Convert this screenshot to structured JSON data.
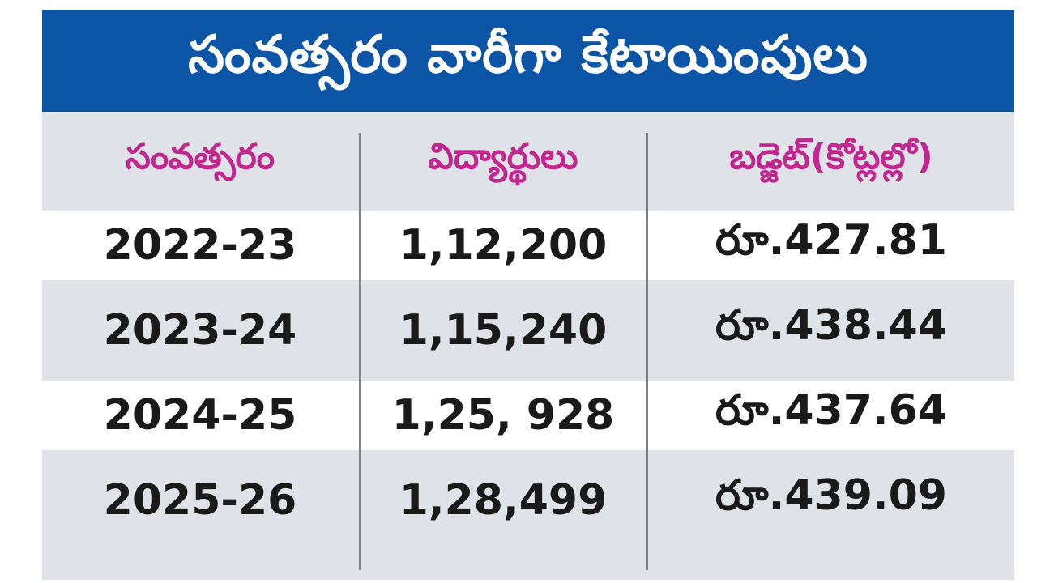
{
  "title": "సంవత్సరం వారీగా కేటాయింపులు",
  "colors": {
    "title_bg": "#0c55a6",
    "header_text": "#c2268f",
    "body_text": "#1a1a1a",
    "row_gray": "#dfe3e8",
    "row_light": "#ffffff"
  },
  "chart_data": {
    "type": "table",
    "title": "సంవత్సరం వారీగా కేటాయింపులు",
    "columns": [
      "సంవత్సరం",
      "విద్యార్థులు",
      "బడ్జెట్(కోట్లల్లో)"
    ],
    "rows": [
      [
        "2022-23",
        "1,12,200",
        "రూ.427.81"
      ],
      [
        "2023-24",
        "1,15,240",
        "రూ.438.44"
      ],
      [
        "2024-25",
        "1,25, 928",
        "రూ.437.64"
      ],
      [
        "2025-26",
        "1,28,499",
        "రూ.439.09"
      ]
    ]
  }
}
